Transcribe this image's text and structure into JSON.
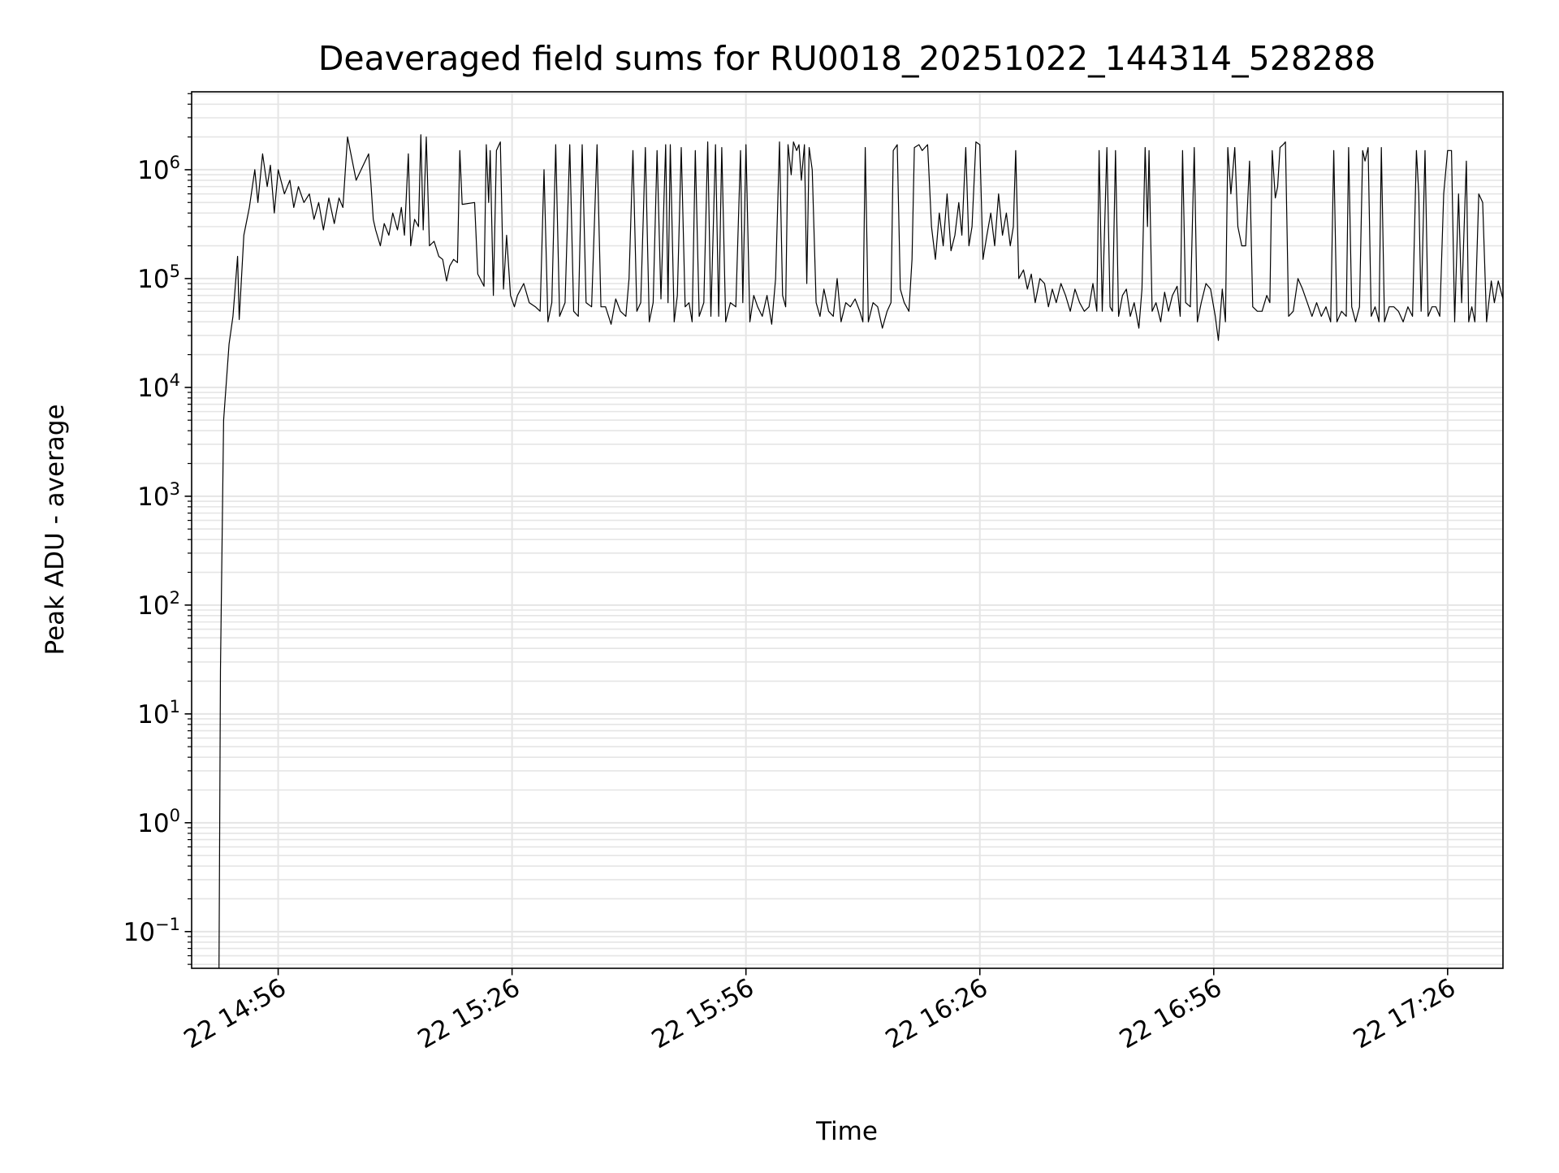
{
  "chart_data": {
    "type": "line",
    "title": "Deaveraged field sums for RU0018_20251022_144314_528288",
    "xlabel": "Time",
    "ylabel": "Peak ADU - average",
    "x_units": "minutes after 22 14:00",
    "xlim": [
      44.9,
      213.1
    ],
    "ylim": [
      0.046,
      5200000
    ],
    "yscale": "log",
    "grid": "major+minor",
    "line_color": "#000000",
    "grid_color": "#e5e5e5",
    "xticks": [
      {
        "value": 56,
        "label": "22 14:56"
      },
      {
        "value": 86,
        "label": "22 15:26"
      },
      {
        "value": 116,
        "label": "22 15:56"
      },
      {
        "value": 146,
        "label": "22 16:26"
      },
      {
        "value": 176,
        "label": "22 16:56"
      },
      {
        "value": 206,
        "label": "22 17:26"
      }
    ],
    "yticks": [
      {
        "value": 0.1,
        "base": "10",
        "exp": "−1"
      },
      {
        "value": 1,
        "base": "10",
        "exp": "0"
      },
      {
        "value": 10,
        "base": "10",
        "exp": "1"
      },
      {
        "value": 100,
        "base": "10",
        "exp": "2"
      },
      {
        "value": 1000,
        "base": "10",
        "exp": "3"
      },
      {
        "value": 10000,
        "base": "10",
        "exp": "4"
      },
      {
        "value": 100000,
        "base": "10",
        "exp": "5"
      },
      {
        "value": 1000000,
        "base": "10",
        "exp": "6"
      }
    ],
    "points": [
      [
        48.4,
        0.03
      ],
      [
        48.6,
        25
      ],
      [
        49.0,
        5000
      ],
      [
        49.7,
        25000
      ],
      [
        50.2,
        45000
      ],
      [
        50.8,
        160000
      ],
      [
        51.0,
        42000
      ],
      [
        51.6,
        250000
      ],
      [
        52.3,
        450000
      ],
      [
        53.0,
        1000000
      ],
      [
        53.4,
        500000
      ],
      [
        54.0,
        1400000
      ],
      [
        54.6,
        700000
      ],
      [
        55.0,
        1100000
      ],
      [
        55.5,
        400000
      ],
      [
        56.0,
        1000000
      ],
      [
        56.8,
        600000
      ],
      [
        57.5,
        800000
      ],
      [
        58,
        450000
      ],
      [
        58.6,
        700000
      ],
      [
        59.3,
        500000
      ],
      [
        60,
        600000
      ],
      [
        60.6,
        350000
      ],
      [
        61.2,
        500000
      ],
      [
        61.8,
        280000
      ],
      [
        62.5,
        550000
      ],
      [
        63.2,
        320000
      ],
      [
        63.8,
        550000
      ],
      [
        64.3,
        450000
      ],
      [
        64.9,
        2000000
      ],
      [
        66,
        800000
      ],
      [
        67.6,
        1400000
      ],
      [
        67.9,
        750000
      ],
      [
        68.2,
        350000
      ],
      [
        68.5,
        280000
      ],
      [
        69.1,
        200000
      ],
      [
        69.6,
        320000
      ],
      [
        70.2,
        250000
      ],
      [
        70.7,
        400000
      ],
      [
        71.3,
        280000
      ],
      [
        71.8,
        450000
      ],
      [
        72.2,
        250000
      ],
      [
        72.7,
        1400000
      ],
      [
        73.0,
        200000
      ],
      [
        73.5,
        350000
      ],
      [
        74,
        300000
      ],
      [
        74.3,
        2100000
      ],
      [
        74.6,
        280000
      ],
      [
        75,
        2000000
      ],
      [
        75.4,
        200000
      ],
      [
        76,
        220000
      ],
      [
        76.6,
        160000
      ],
      [
        77.1,
        150000
      ],
      [
        77.6,
        95000
      ],
      [
        78,
        130000
      ],
      [
        78.5,
        150000
      ],
      [
        79,
        140000
      ],
      [
        79.3,
        1500000
      ],
      [
        79.6,
        480000
      ],
      [
        81.2,
        500000
      ],
      [
        81.6,
        110000
      ],
      [
        82.4,
        85000
      ],
      [
        82.7,
        1700000
      ],
      [
        83,
        500000
      ],
      [
        83.2,
        1500000
      ],
      [
        83.6,
        70000
      ],
      [
        84,
        1500000
      ],
      [
        84.5,
        1800000
      ],
      [
        84.9,
        80000
      ],
      [
        85.3,
        250000
      ],
      [
        85.8,
        70000
      ],
      [
        86.3,
        55000
      ],
      [
        86.7,
        70000
      ],
      [
        87.5,
        90000
      ],
      [
        88.2,
        60000
      ],
      [
        89.0,
        55000
      ],
      [
        89.6,
        50000
      ],
      [
        90.1,
        1000000
      ],
      [
        90.6,
        40000
      ],
      [
        91.1,
        60000
      ],
      [
        91.6,
        1700000
      ],
      [
        92.1,
        45000
      ],
      [
        92.8,
        60000
      ],
      [
        93.4,
        1700000
      ],
      [
        93.9,
        50000
      ],
      [
        94.5,
        45000
      ],
      [
        95.0,
        1700000
      ],
      [
        95.5,
        60000
      ],
      [
        96.2,
        55000
      ],
      [
        96.9,
        1700000
      ],
      [
        97.4,
        55000
      ],
      [
        98,
        55000
      ],
      [
        98.7,
        38000
      ],
      [
        99.3,
        65000
      ],
      [
        99.9,
        50000
      ],
      [
        100.6,
        45000
      ],
      [
        101.0,
        100000
      ],
      [
        101.5,
        1500000
      ],
      [
        102,
        50000
      ],
      [
        102.5,
        60000
      ],
      [
        103.1,
        1600000
      ],
      [
        103.6,
        40000
      ],
      [
        104.1,
        60000
      ],
      [
        104.6,
        1500000
      ],
      [
        105.1,
        65000
      ],
      [
        105.7,
        1700000
      ],
      [
        106,
        60000
      ],
      [
        106.3,
        1700000
      ],
      [
        106.8,
        40000
      ],
      [
        107.2,
        70000
      ],
      [
        107.7,
        1600000
      ],
      [
        108.2,
        55000
      ],
      [
        108.7,
        60000
      ],
      [
        109.1,
        40000
      ],
      [
        109.5,
        1500000
      ],
      [
        110,
        45000
      ],
      [
        110.6,
        60000
      ],
      [
        111.1,
        1800000
      ],
      [
        111.5,
        45000
      ],
      [
        112.1,
        1700000
      ],
      [
        112.5,
        45000
      ],
      [
        112.9,
        1600000
      ],
      [
        113.4,
        40000
      ],
      [
        114,
        60000
      ],
      [
        114.7,
        55000
      ],
      [
        115.3,
        1500000
      ],
      [
        115.6,
        60000
      ],
      [
        116,
        1700000
      ],
      [
        116.5,
        40000
      ],
      [
        117,
        70000
      ],
      [
        117.5,
        55000
      ],
      [
        118.1,
        45000
      ],
      [
        118.7,
        70000
      ],
      [
        119.3,
        38000
      ],
      [
        119.8,
        100000
      ],
      [
        120.3,
        1800000
      ],
      [
        120.7,
        70000
      ],
      [
        121.1,
        55000
      ],
      [
        121.4,
        1700000
      ],
      [
        121.8,
        900000
      ],
      [
        122.1,
        1800000
      ],
      [
        122.5,
        1500000
      ],
      [
        122.8,
        1700000
      ],
      [
        123.1,
        800000
      ],
      [
        123.5,
        1700000
      ],
      [
        123.8,
        90000
      ],
      [
        124.1,
        1600000
      ],
      [
        124.5,
        1000000
      ],
      [
        125,
        60000
      ],
      [
        125.5,
        45000
      ],
      [
        126,
        80000
      ],
      [
        126.6,
        50000
      ],
      [
        127.2,
        45000
      ],
      [
        127.7,
        100000
      ],
      [
        128.2,
        40000
      ],
      [
        128.8,
        60000
      ],
      [
        129.4,
        55000
      ],
      [
        130,
        65000
      ],
      [
        130.6,
        50000
      ],
      [
        131,
        40000
      ],
      [
        131.3,
        1600000
      ],
      [
        131.7,
        40000
      ],
      [
        132.3,
        60000
      ],
      [
        132.9,
        55000
      ],
      [
        133.5,
        35000
      ],
      [
        134.1,
        50000
      ],
      [
        134.6,
        60000
      ],
      [
        134.9,
        1500000
      ],
      [
        135.4,
        1700000
      ],
      [
        135.8,
        80000
      ],
      [
        136.3,
        60000
      ],
      [
        136.9,
        50000
      ],
      [
        137.3,
        150000
      ],
      [
        137.6,
        1600000
      ],
      [
        138.2,
        1700000
      ],
      [
        138.6,
        1500000
      ],
      [
        139.3,
        1700000
      ],
      [
        139.8,
        300000
      ],
      [
        140.3,
        150000
      ],
      [
        140.8,
        400000
      ],
      [
        141.3,
        200000
      ],
      [
        141.8,
        600000
      ],
      [
        142.3,
        180000
      ],
      [
        142.8,
        250000
      ],
      [
        143.3,
        500000
      ],
      [
        143.7,
        250000
      ],
      [
        144.2,
        1600000
      ],
      [
        144.6,
        200000
      ],
      [
        145,
        300000
      ],
      [
        145.5,
        1800000
      ],
      [
        146,
        1700000
      ],
      [
        146.4,
        150000
      ],
      [
        146.9,
        250000
      ],
      [
        147.4,
        400000
      ],
      [
        147.9,
        200000
      ],
      [
        148.4,
        600000
      ],
      [
        148.9,
        250000
      ],
      [
        149.4,
        400000
      ],
      [
        149.9,
        200000
      ],
      [
        150.3,
        300000
      ],
      [
        150.6,
        1500000
      ],
      [
        151,
        100000
      ],
      [
        151.6,
        120000
      ],
      [
        152.1,
        80000
      ],
      [
        152.6,
        110000
      ],
      [
        153.1,
        60000
      ],
      [
        153.7,
        100000
      ],
      [
        154.3,
        90000
      ],
      [
        154.8,
        55000
      ],
      [
        155.3,
        80000
      ],
      [
        155.8,
        60000
      ],
      [
        156.4,
        90000
      ],
      [
        157,
        70000
      ],
      [
        157.6,
        50000
      ],
      [
        158.2,
        80000
      ],
      [
        158.8,
        60000
      ],
      [
        159.4,
        50000
      ],
      [
        160,
        55000
      ],
      [
        160.5,
        90000
      ],
      [
        161,
        50000
      ],
      [
        161.3,
        1500000
      ],
      [
        161.7,
        50000
      ],
      [
        162.3,
        1600000
      ],
      [
        162.7,
        55000
      ],
      [
        163,
        50000
      ],
      [
        163.4,
        1500000
      ],
      [
        163.8,
        45000
      ],
      [
        164.3,
        70000
      ],
      [
        164.8,
        80000
      ],
      [
        165.3,
        45000
      ],
      [
        165.8,
        60000
      ],
      [
        166.4,
        35000
      ],
      [
        166.8,
        80000
      ],
      [
        167.2,
        1600000
      ],
      [
        167.5,
        300000
      ],
      [
        167.7,
        1500000
      ],
      [
        168.1,
        50000
      ],
      [
        168.6,
        60000
      ],
      [
        169.2,
        40000
      ],
      [
        169.7,
        75000
      ],
      [
        170.2,
        50000
      ],
      [
        170.7,
        70000
      ],
      [
        171.3,
        85000
      ],
      [
        171.7,
        45000
      ],
      [
        172,
        1500000
      ],
      [
        172.4,
        60000
      ],
      [
        173,
        55000
      ],
      [
        173.5,
        1600000
      ],
      [
        173.9,
        40000
      ],
      [
        174.4,
        60000
      ],
      [
        175,
        90000
      ],
      [
        175.6,
        80000
      ],
      [
        176.2,
        45000
      ],
      [
        176.6,
        27000
      ],
      [
        177.1,
        80000
      ],
      [
        177.5,
        40000
      ],
      [
        177.8,
        1600000
      ],
      [
        178.2,
        600000
      ],
      [
        178.7,
        1600000
      ],
      [
        179.1,
        300000
      ],
      [
        179.6,
        200000
      ],
      [
        180.1,
        200000
      ],
      [
        180.6,
        1200000
      ],
      [
        181,
        55000
      ],
      [
        181.6,
        50000
      ],
      [
        182.2,
        50000
      ],
      [
        182.8,
        70000
      ],
      [
        183.2,
        60000
      ],
      [
        183.5,
        1500000
      ],
      [
        183.9,
        550000
      ],
      [
        184.2,
        700000
      ],
      [
        184.5,
        1600000
      ],
      [
        184.9,
        1700000
      ],
      [
        185.2,
        1800000
      ],
      [
        185.6,
        45000
      ],
      [
        186.2,
        50000
      ],
      [
        186.8,
        100000
      ],
      [
        187.4,
        80000
      ],
      [
        188,
        60000
      ],
      [
        188.6,
        45000
      ],
      [
        189.2,
        60000
      ],
      [
        189.8,
        45000
      ],
      [
        190.4,
        55000
      ],
      [
        191,
        40000
      ],
      [
        191.4,
        1500000
      ],
      [
        191.8,
        40000
      ],
      [
        192.4,
        50000
      ],
      [
        193,
        45000
      ],
      [
        193.3,
        1600000
      ],
      [
        193.7,
        55000
      ],
      [
        194.2,
        40000
      ],
      [
        194.7,
        55000
      ],
      [
        195.1,
        1500000
      ],
      [
        195.4,
        1200000
      ],
      [
        195.8,
        1600000
      ],
      [
        196.2,
        45000
      ],
      [
        196.7,
        55000
      ],
      [
        197.2,
        40000
      ],
      [
        197.5,
        1600000
      ],
      [
        197.9,
        40000
      ],
      [
        198.5,
        55000
      ],
      [
        199.1,
        55000
      ],
      [
        199.7,
        50000
      ],
      [
        200.3,
        40000
      ],
      [
        200.9,
        55000
      ],
      [
        201.5,
        45000
      ],
      [
        202,
        1500000
      ],
      [
        202.3,
        600000
      ],
      [
        202.6,
        50000
      ],
      [
        203.1,
        1500000
      ],
      [
        203.5,
        45000
      ],
      [
        204,
        55000
      ],
      [
        204.5,
        55000
      ],
      [
        205,
        45000
      ],
      [
        205.5,
        600000
      ],
      [
        206,
        1500000
      ],
      [
        206.5,
        1500000
      ],
      [
        206.9,
        40000
      ],
      [
        207.4,
        600000
      ],
      [
        207.8,
        60000
      ],
      [
        208.4,
        1200000
      ],
      [
        208.7,
        40000
      ],
      [
        209.1,
        55000
      ],
      [
        209.5,
        40000
      ],
      [
        210,
        600000
      ],
      [
        210.5,
        500000
      ],
      [
        211,
        40000
      ],
      [
        211.6,
        95000
      ],
      [
        212,
        60000
      ],
      [
        212.5,
        95000
      ],
      [
        213.1,
        65000
      ]
    ]
  }
}
